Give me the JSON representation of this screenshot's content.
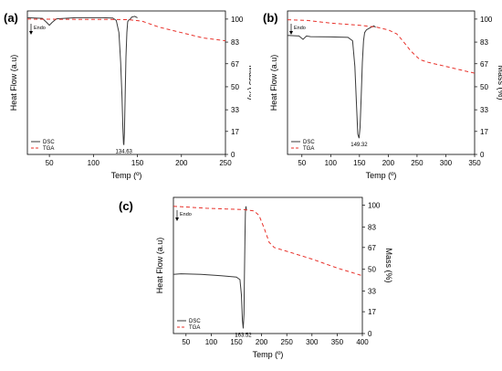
{
  "panels": [
    {
      "label": "(a)"
    },
    {
      "label": "(b)"
    },
    {
      "label": "(c)"
    }
  ],
  "chart_data": [
    {
      "type": "line",
      "panel": "(a)",
      "xlabel": "Temp (º)",
      "ylabel_left": "Heat Flow (a.u)",
      "ylabel_right": "Mass (%)",
      "xlim": [
        25,
        250
      ],
      "ylim": [
        0,
        106
      ],
      "x_ticks": [
        "50",
        "100",
        "150",
        "200",
        "250"
      ],
      "y_right_ticks": [
        "0",
        "17",
        "33",
        "50",
        "67",
        "83",
        "100"
      ],
      "annotations": {
        "endo": "Endo",
        "peak": "134.63"
      },
      "legend": {
        "position": "bottom-left",
        "entries": [
          "DSC",
          "TGA"
        ]
      },
      "colors": {
        "DSC": "#3a3a3a",
        "TGA": "#e8312a"
      },
      "series": [
        {
          "name": "DSC",
          "axis": "left",
          "x": [
            25,
            42,
            47,
            50,
            53,
            58,
            80,
            110,
            122,
            126,
            129,
            131,
            132.5,
            133.5,
            134.2,
            134.63,
            135.2,
            136,
            137,
            138,
            139,
            140,
            141,
            142,
            143.5,
            147,
            150
          ],
          "y": [
            101,
            100.5,
            97.5,
            95.5,
            97.5,
            100.2,
            101,
            101,
            100.8,
            99,
            90,
            68,
            42,
            20,
            8,
            7,
            16,
            42,
            72,
            90,
            98,
            99.2,
            99.6,
            100,
            101.5,
            102,
            101
          ]
        },
        {
          "name": "TGA",
          "axis": "right",
          "x": [
            25,
            80,
            120,
            140,
            145,
            155,
            175,
            200,
            225,
            250
          ],
          "y": [
            100,
            99.8,
            99.7,
            99.6,
            99.2,
            98.5,
            94,
            90,
            86,
            84
          ]
        }
      ]
    },
    {
      "type": "line",
      "panel": "(b)",
      "xlabel": "Temp (º)",
      "ylabel_left": "Heat Flow (a.u)",
      "ylabel_right": "Mass (%)",
      "xlim": [
        25,
        350
      ],
      "ylim": [
        0,
        106
      ],
      "x_ticks": [
        "50",
        "100",
        "150",
        "200",
        "250",
        "300",
        "350"
      ],
      "y_right_ticks": [
        "0",
        "17",
        "33",
        "50",
        "67",
        "83",
        "100"
      ],
      "annotations": {
        "endo": "Endo",
        "peak": "149.32"
      },
      "legend": {
        "position": "bottom-left",
        "entries": [
          "DSC",
          "TGA"
        ]
      },
      "colors": {
        "DSC": "#3a3a3a",
        "TGA": "#e8312a"
      },
      "series": [
        {
          "name": "DSC",
          "axis": "left",
          "x": [
            25,
            45,
            52,
            58,
            65,
            100,
            130,
            138,
            142,
            145,
            147,
            149.32,
            151,
            153,
            155,
            157,
            159,
            162,
            166,
            170,
            175,
            178
          ],
          "y": [
            88,
            87.5,
            85,
            87.5,
            87,
            86.8,
            86.5,
            84,
            65,
            35,
            15,
            12,
            20,
            42,
            68,
            84,
            90,
            92,
            93,
            94,
            95,
            94
          ]
        },
        {
          "name": "TGA",
          "axis": "right",
          "x": [
            25,
            60,
            100,
            150,
            180,
            200,
            215,
            225,
            240,
            255,
            270,
            300,
            330,
            350
          ],
          "y": [
            99.5,
            99,
            97,
            95.5,
            94,
            92,
            89,
            84,
            76,
            70,
            68,
            65,
            62,
            60
          ]
        }
      ]
    },
    {
      "type": "line",
      "panel": "(c)",
      "xlabel": "Temp (º)",
      "ylabel_left": "Heat Flow (a.u)",
      "ylabel_right": "Mass (%)",
      "xlim": [
        25,
        400
      ],
      "ylim": [
        0,
        106
      ],
      "x_ticks": [
        "50",
        "100",
        "150",
        "200",
        "250",
        "300",
        "350",
        "400"
      ],
      "y_right_ticks": [
        "0",
        "17",
        "33",
        "50",
        "67",
        "83",
        "100"
      ],
      "annotations": {
        "endo": "Endo",
        "peak": "163.52"
      },
      "legend": {
        "position": "bottom-left",
        "entries": [
          "DSC",
          "TGA"
        ]
      },
      "colors": {
        "DSC": "#3a3a3a",
        "TGA": "#e8312a"
      },
      "series": [
        {
          "name": "DSC",
          "axis": "left",
          "x": [
            25,
            40,
            80,
            120,
            150,
            157,
            160,
            162,
            163.52,
            165,
            166,
            167,
            168,
            169,
            170
          ],
          "y": [
            46,
            46.5,
            46,
            45,
            44,
            42,
            30,
            10,
            4,
            15,
            45,
            75,
            95,
            99,
            96
          ]
        },
        {
          "name": "TGA",
          "axis": "right",
          "x": [
            25,
            50,
            90,
            130,
            165,
            185,
            195,
            205,
            215,
            225,
            250,
            300,
            350,
            400
          ],
          "y": [
            99,
            98.5,
            97.5,
            97,
            96.5,
            95.5,
            92,
            82,
            71,
            67,
            64,
            58,
            51,
            45
          ]
        }
      ]
    }
  ]
}
